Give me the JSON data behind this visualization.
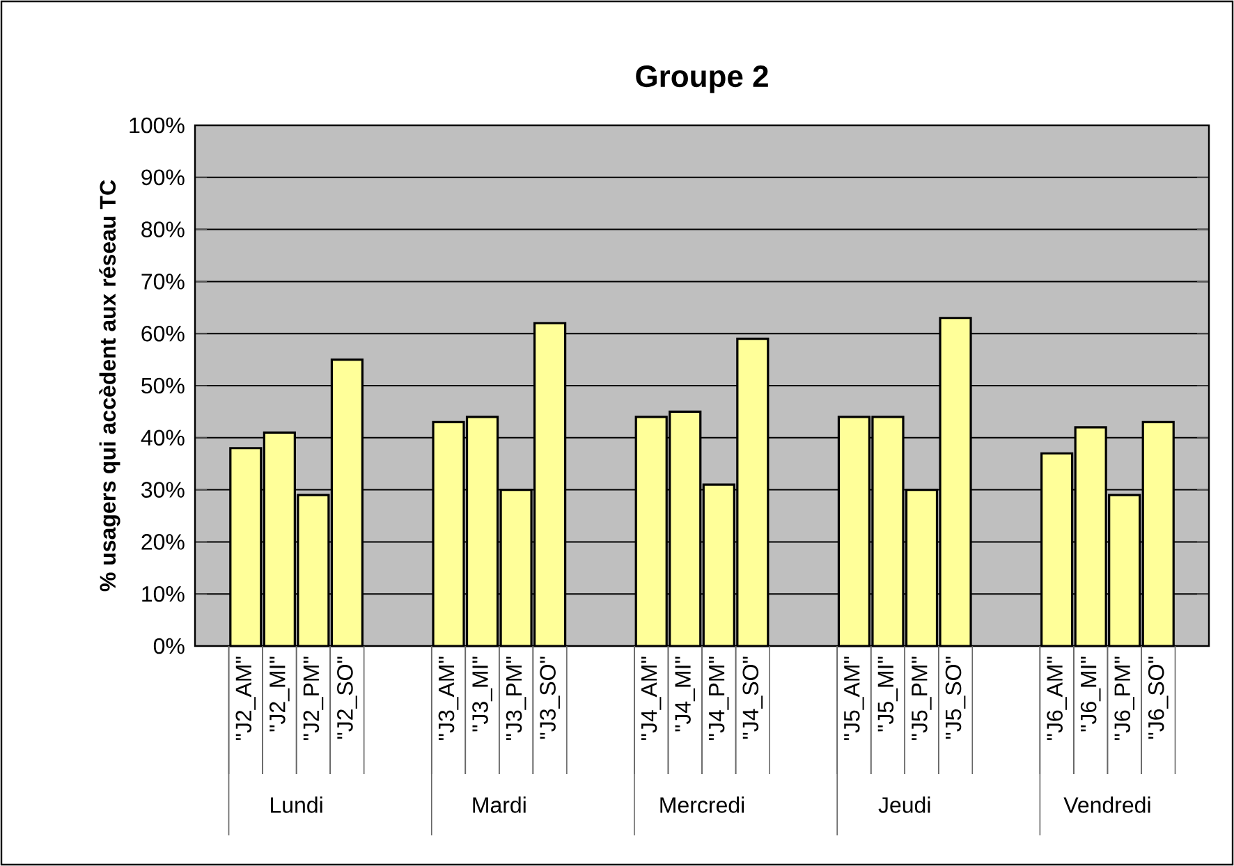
{
  "chart_data": {
    "type": "bar",
    "title": "Groupe 2",
    "ylabel": "% usagers qui accèdent aux réseau TC",
    "categories": [
      null,
      "\"J2_AM\"",
      "\"J2_MI\"",
      "\"J2_PM\"",
      "\"J2_SO\"",
      null,
      null,
      "\"J3_AM\"",
      "\"J3_MI\"",
      "\"J3_PM\"",
      "\"J3_SO\"",
      null,
      null,
      "\"J4_AM\"",
      "\"J4_MI\"",
      "\"J4_PM\"",
      "\"J4_SO\"",
      null,
      null,
      "\"J5_AM\"",
      "\"J5_MI\"",
      "\"J5_PM\"",
      "\"J5_SO\"",
      null,
      null,
      "\"J6_AM\"",
      "\"J6_MI\"",
      "\"J6_PM\"",
      "\"J6_SO\"",
      null
    ],
    "values": [
      null,
      38,
      41,
      29,
      55,
      null,
      null,
      43,
      44,
      30,
      62,
      null,
      null,
      44,
      45,
      31,
      59,
      null,
      null,
      44,
      44,
      30,
      63,
      null,
      null,
      37,
      42,
      29,
      43,
      null
    ],
    "color": "#ffff99",
    "ylim": [
      0,
      100
    ],
    "yticks": [
      {
        "value": 0,
        "label": "0%"
      },
      {
        "value": 10,
        "label": "10%"
      },
      {
        "value": 20,
        "label": "20%"
      },
      {
        "value": 30,
        "label": "30%"
      },
      {
        "value": 40,
        "label": "40%"
      },
      {
        "value": 50,
        "label": "50%"
      },
      {
        "value": 60,
        "label": "60%"
      },
      {
        "value": 70,
        "label": "70%"
      },
      {
        "value": 80,
        "label": "80%"
      },
      {
        "value": 90,
        "label": "90%"
      },
      {
        "value": 100,
        "label": "100%"
      }
    ],
    "grid": "y",
    "annotations": [
      "Lundi",
      "Mardi",
      "Mercredi",
      "Jeudi",
      "Vendredi"
    ]
  }
}
